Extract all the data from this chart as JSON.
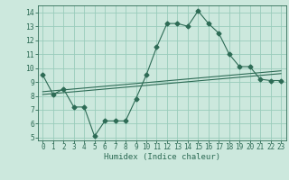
{
  "xlabel": "Humidex (Indice chaleur)",
  "bg_color": "#cce8dd",
  "grid_color": "#99ccbb",
  "line_color": "#2d6b55",
  "xlim": [
    -0.5,
    23.5
  ],
  "ylim": [
    4.8,
    14.5
  ],
  "xticks": [
    0,
    1,
    2,
    3,
    4,
    5,
    6,
    7,
    8,
    9,
    10,
    11,
    12,
    13,
    14,
    15,
    16,
    17,
    18,
    19,
    20,
    21,
    22,
    23
  ],
  "yticks": [
    5,
    6,
    7,
    8,
    9,
    10,
    11,
    12,
    13,
    14
  ],
  "series1_x": [
    0,
    1,
    2,
    3,
    4,
    5,
    6,
    7,
    8,
    9,
    10,
    11,
    12,
    13,
    14,
    15,
    16,
    17,
    18,
    19,
    20,
    21,
    22,
    23
  ],
  "series1_y": [
    9.5,
    8.1,
    8.5,
    7.2,
    7.2,
    5.1,
    6.2,
    6.2,
    6.2,
    7.8,
    9.5,
    11.5,
    13.2,
    13.2,
    13.0,
    14.1,
    13.2,
    12.5,
    11.0,
    10.1,
    10.1,
    9.2,
    9.1,
    9.1
  ],
  "series2_x": [
    0,
    23
  ],
  "series2_y": [
    8.3,
    9.8
  ],
  "series3_x": [
    0,
    23
  ],
  "series3_y": [
    8.1,
    9.6
  ],
  "marker": "D",
  "markersize": 2.5,
  "xlabel_fontsize": 6.5,
  "tick_fontsize": 5.5
}
